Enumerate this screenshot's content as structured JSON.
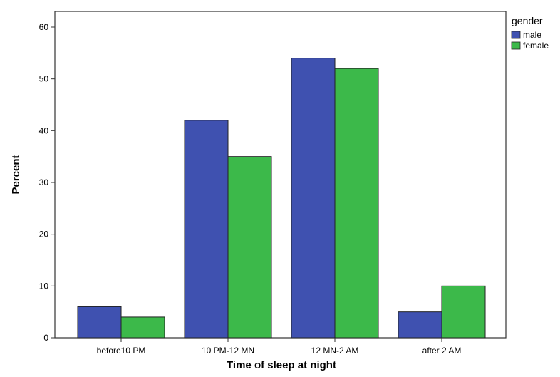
{
  "chart_data": {
    "type": "bar",
    "categories": [
      "before10 PM",
      "10 PM-12 MN",
      "12 MN-2 AM",
      "after 2 AM"
    ],
    "series": [
      {
        "name": "male",
        "values": [
          6,
          42,
          54,
          5
        ],
        "color": "#3f51b0"
      },
      {
        "name": "female",
        "values": [
          4,
          35,
          52,
          10
        ],
        "color": "#3cb94a"
      }
    ],
    "xlabel": "Time of sleep at night",
    "ylabel": "Percent",
    "ylim": [
      0,
      64
    ],
    "yticks": [
      0,
      10,
      20,
      30,
      40,
      50,
      60
    ],
    "grid": false,
    "legend": {
      "title": "gender",
      "placement": "top-right, outside plot"
    }
  }
}
